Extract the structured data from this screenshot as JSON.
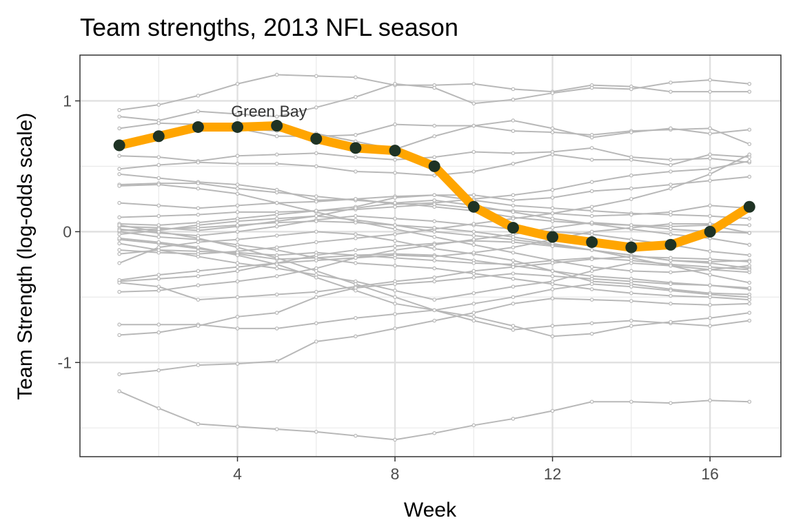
{
  "chart_data": {
    "type": "line",
    "title": "Team strengths, 2013 NFL season",
    "xlabel": "Week",
    "ylabel": "Team Strength (log-odds scale)",
    "xlim": [
      0.0,
      17.8
    ],
    "ylim": [
      -1.72,
      1.35
    ],
    "x_ticks": [
      4,
      8,
      12,
      16
    ],
    "y_ticks": [
      -1,
      0,
      1
    ],
    "grid": true,
    "legend": "none",
    "x": [
      1,
      2,
      3,
      4,
      5,
      6,
      7,
      8,
      9,
      10,
      11,
      12,
      13,
      14,
      15,
      16,
      17
    ],
    "highlight": {
      "name": "Green Bay",
      "label_at": [
        4.8,
        0.92
      ],
      "color": "#FFA500",
      "point_color": "#1f3324",
      "values": [
        0.66,
        0.73,
        0.8,
        0.8,
        0.81,
        0.71,
        0.64,
        0.62,
        0.5,
        0.19,
        0.03,
        -0.04,
        -0.08,
        -0.12,
        -0.1,
        0.0,
        0.19
      ]
    },
    "background_color": "#b8b8b8",
    "background_series": [
      [
        0.93,
        0.97,
        1.04,
        1.13,
        1.2,
        1.19,
        1.18,
        1.12,
        1.12,
        1.13,
        1.09,
        1.07,
        1.12,
        1.11,
        1.07,
        1.07,
        1.07
      ],
      [
        0.88,
        0.85,
        0.92,
        0.9,
        0.88,
        0.95,
        1.03,
        1.13,
        1.1,
        0.98,
        1.01,
        1.06,
        1.1,
        1.09,
        1.14,
        1.16,
        1.13
      ],
      [
        0.79,
        0.83,
        0.82,
        0.79,
        0.73,
        0.73,
        0.74,
        0.82,
        0.81,
        0.81,
        0.77,
        0.76,
        0.74,
        0.77,
        0.78,
        0.79,
        0.67
      ],
      [
        0.68,
        0.72,
        0.78,
        0.79,
        0.77,
        0.75,
        0.69,
        0.63,
        0.73,
        0.81,
        0.85,
        0.79,
        0.72,
        0.76,
        0.79,
        0.75,
        0.78
      ],
      [
        0.58,
        0.57,
        0.54,
        0.58,
        0.59,
        0.6,
        0.57,
        0.55,
        0.57,
        0.61,
        0.6,
        0.61,
        0.64,
        0.57,
        0.55,
        0.56,
        0.53
      ],
      [
        0.48,
        0.51,
        0.53,
        0.52,
        0.52,
        0.5,
        0.46,
        0.45,
        0.43,
        0.46,
        0.52,
        0.59,
        0.55,
        0.55,
        0.51,
        0.59,
        0.57
      ],
      [
        0.44,
        0.41,
        0.38,
        0.36,
        0.32,
        0.24,
        0.25,
        0.21,
        0.22,
        0.25,
        0.28,
        0.32,
        0.38,
        0.43,
        0.46,
        0.48,
        0.54
      ],
      [
        0.36,
        0.37,
        0.37,
        0.33,
        0.3,
        0.27,
        0.24,
        0.22,
        0.19,
        0.16,
        0.11,
        0.08,
        0.06,
        0.05,
        0.04,
        0.05,
        -0.01
      ],
      [
        0.35,
        0.36,
        0.33,
        0.29,
        0.22,
        0.15,
        0.08,
        0.02,
        -0.04,
        -0.1,
        -0.16,
        -0.22,
        -0.27,
        -0.3,
        -0.31,
        -0.29,
        -0.26
      ],
      [
        0.22,
        0.2,
        0.18,
        0.2,
        0.22,
        0.23,
        0.25,
        0.27,
        0.28,
        0.24,
        0.2,
        0.18,
        0.16,
        0.14,
        0.13,
        0.12,
        0.1
      ],
      [
        0.11,
        0.12,
        0.13,
        0.15,
        0.15,
        0.16,
        0.17,
        0.19,
        0.21,
        0.18,
        0.16,
        0.14,
        0.12,
        0.13,
        0.15,
        0.2,
        0.18
      ],
      [
        0.06,
        0.05,
        0.07,
        0.1,
        0.13,
        0.16,
        0.19,
        0.26,
        0.28,
        0.28,
        0.24,
        0.26,
        0.31,
        0.33,
        0.36,
        0.39,
        0.42
      ],
      [
        0.04,
        0.03,
        0.01,
        0.04,
        0.08,
        0.12,
        0.18,
        0.22,
        0.24,
        0.2,
        0.15,
        0.1,
        0.06,
        0.02,
        -0.02,
        -0.05,
        -0.1
      ],
      [
        0.02,
        -0.01,
        -0.03,
        0.0,
        0.04,
        0.09,
        0.12,
        0.1,
        0.08,
        0.05,
        0.02,
        0.0,
        -0.02,
        -0.06,
        -0.1,
        -0.15,
        -0.18
      ],
      [
        0.0,
        -0.04,
        -0.06,
        -0.1,
        -0.14,
        -0.2,
        -0.24,
        -0.26,
        -0.28,
        -0.32,
        -0.36,
        -0.4,
        -0.44,
        -0.47,
        -0.49,
        -0.5,
        -0.52
      ],
      [
        -0.02,
        0.01,
        0.05,
        0.08,
        0.1,
        0.12,
        0.09,
        0.05,
        0.0,
        -0.03,
        -0.06,
        -0.1,
        -0.14,
        -0.18,
        -0.22,
        -0.24,
        -0.28
      ],
      [
        -0.06,
        -0.09,
        -0.13,
        -0.17,
        -0.21,
        -0.2,
        -0.18,
        -0.17,
        -0.18,
        -0.22,
        -0.26,
        -0.3,
        -0.34,
        -0.36,
        -0.39,
        -0.41,
        -0.44
      ],
      [
        -0.09,
        -0.14,
        -0.19,
        -0.24,
        -0.28,
        -0.33,
        -0.38,
        -0.45,
        -0.52,
        -0.47,
        -0.42,
        -0.38,
        -0.3,
        -0.24,
        -0.26,
        -0.29,
        -0.31
      ],
      [
        -0.14,
        -0.16,
        -0.17,
        -0.15,
        -0.12,
        -0.08,
        -0.05,
        -0.02,
        0.02,
        0.06,
        0.1,
        0.14,
        0.19,
        0.25,
        0.33,
        0.44,
        0.59
      ],
      [
        -0.17,
        -0.14,
        -0.15,
        -0.16,
        -0.18,
        -0.16,
        -0.18,
        -0.2,
        -0.22,
        -0.24,
        -0.25,
        -0.22,
        -0.2,
        -0.22,
        -0.25,
        -0.27,
        -0.29
      ],
      [
        -0.24,
        -0.12,
        -0.08,
        -0.06,
        -0.03,
        0.0,
        -0.02,
        -0.07,
        -0.13,
        -0.17,
        -0.22,
        -0.3,
        -0.38,
        -0.4,
        -0.44,
        -0.47,
        -0.48
      ],
      [
        -0.38,
        -0.36,
        -0.34,
        -0.3,
        -0.24,
        -0.18,
        -0.14,
        -0.11,
        -0.09,
        -0.07,
        -0.08,
        -0.11,
        -0.14,
        -0.18,
        -0.22,
        -0.23,
        -0.22
      ],
      [
        -0.37,
        -0.33,
        -0.3,
        -0.27,
        -0.24,
        -0.22,
        -0.2,
        -0.18,
        -0.19,
        -0.16,
        -0.12,
        -0.06,
        0.0,
        0.03,
        0.06,
        0.06,
        0.05
      ],
      [
        -0.46,
        -0.45,
        -0.41,
        -0.38,
        -0.34,
        -0.28,
        -0.2,
        -0.14,
        -0.1,
        -0.06,
        -0.02,
        0.03,
        0.07,
        0.05,
        0.02,
        0.0,
        -0.01
      ],
      [
        -0.39,
        -0.42,
        -0.52,
        -0.5,
        -0.48,
        -0.46,
        -0.42,
        -0.38,
        -0.35,
        -0.3,
        -0.27,
        -0.24,
        -0.21,
        -0.19,
        -0.2,
        -0.21,
        -0.23
      ],
      [
        -0.71,
        -0.71,
        -0.71,
        -0.74,
        -0.74,
        -0.7,
        -0.66,
        -0.63,
        -0.6,
        -0.55,
        -0.5,
        -0.44,
        -0.4,
        -0.42,
        -0.45,
        -0.48,
        -0.5
      ],
      [
        -0.79,
        -0.77,
        -0.72,
        -0.65,
        -0.62,
        -0.5,
        -0.43,
        -0.4,
        -0.38,
        -0.35,
        -0.32,
        -0.34,
        -0.36,
        -0.38,
        -0.4,
        -0.41,
        -0.43
      ],
      [
        -1.09,
        -1.06,
        -1.02,
        -1.01,
        -0.99,
        -0.84,
        -0.8,
        -0.74,
        -0.68,
        -0.62,
        -0.55,
        -0.51,
        -0.52,
        -0.53,
        -0.55,
        -0.56,
        -0.55
      ],
      [
        -1.22,
        -1.35,
        -1.47,
        -1.49,
        -1.51,
        -1.53,
        -1.56,
        -1.59,
        -1.54,
        -1.48,
        -1.43,
        -1.37,
        -1.3,
        -1.3,
        -1.31,
        -1.29,
        -1.3
      ],
      [
        0.05,
        0.0,
        -0.05,
        -0.12,
        -0.2,
        -0.3,
        -0.4,
        -0.5,
        -0.6,
        -0.68,
        -0.75,
        -0.72,
        -0.7,
        -0.68,
        -0.7,
        -0.72,
        -0.68
      ],
      [
        -0.05,
        -0.08,
        -0.12,
        -0.18,
        -0.25,
        -0.35,
        -0.45,
        -0.55,
        -0.6,
        -0.65,
        -0.72,
        -0.8,
        -0.78,
        -0.72,
        -0.69,
        -0.66,
        -0.62
      ],
      [
        0.01,
        0.02,
        0.03,
        0.05,
        0.07,
        0.08,
        0.07,
        0.05,
        0.03,
        0.0,
        -0.04,
        -0.09,
        -0.14,
        -0.2,
        -0.26,
        -0.33,
        -0.39
      ]
    ]
  }
}
